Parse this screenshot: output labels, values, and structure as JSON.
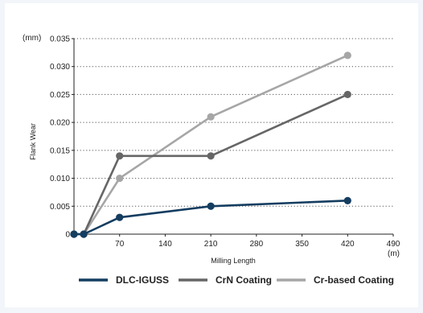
{
  "chart_data": {
    "type": "line",
    "title": "",
    "xlabel": "Milling Length",
    "ylabel": "Flank Wear",
    "x_unit": "(m)",
    "y_unit": "(mm)",
    "xlim": [
      0,
      490
    ],
    "ylim": [
      0,
      0.035
    ],
    "x_ticks": [
      70,
      140,
      210,
      280,
      350,
      420,
      490
    ],
    "x_tick_labels": [
      "70",
      "140",
      "210",
      "280",
      "350",
      "420",
      "490"
    ],
    "y_ticks": [
      0,
      0.005,
      0.01,
      0.015,
      0.02,
      0.025,
      0.03,
      0.035
    ],
    "y_tick_labels": [
      "0",
      "0.005",
      "0.010",
      "0.015",
      "0.020",
      "0.025",
      "0.030",
      "0.035"
    ],
    "grid": "horizontal-dotted",
    "legend_position": "bottom",
    "series": [
      {
        "name": "DLC-IGUSS",
        "color": "#143d60",
        "x": [
          0,
          15,
          70,
          210,
          420
        ],
        "y": [
          0,
          0,
          0.003,
          0.005,
          0.006
        ]
      },
      {
        "name": "CrN Coating",
        "color": "#666666",
        "x": [
          0,
          15,
          70,
          210,
          420
        ],
        "y": [
          0,
          0,
          0.014,
          0.014,
          0.025
        ]
      },
      {
        "name": "Cr-based Coating",
        "color": "#a6a6a6",
        "x": [
          0,
          15,
          70,
          210,
          420
        ],
        "y": [
          0,
          0,
          0.01,
          0.021,
          0.032
        ]
      }
    ]
  }
}
